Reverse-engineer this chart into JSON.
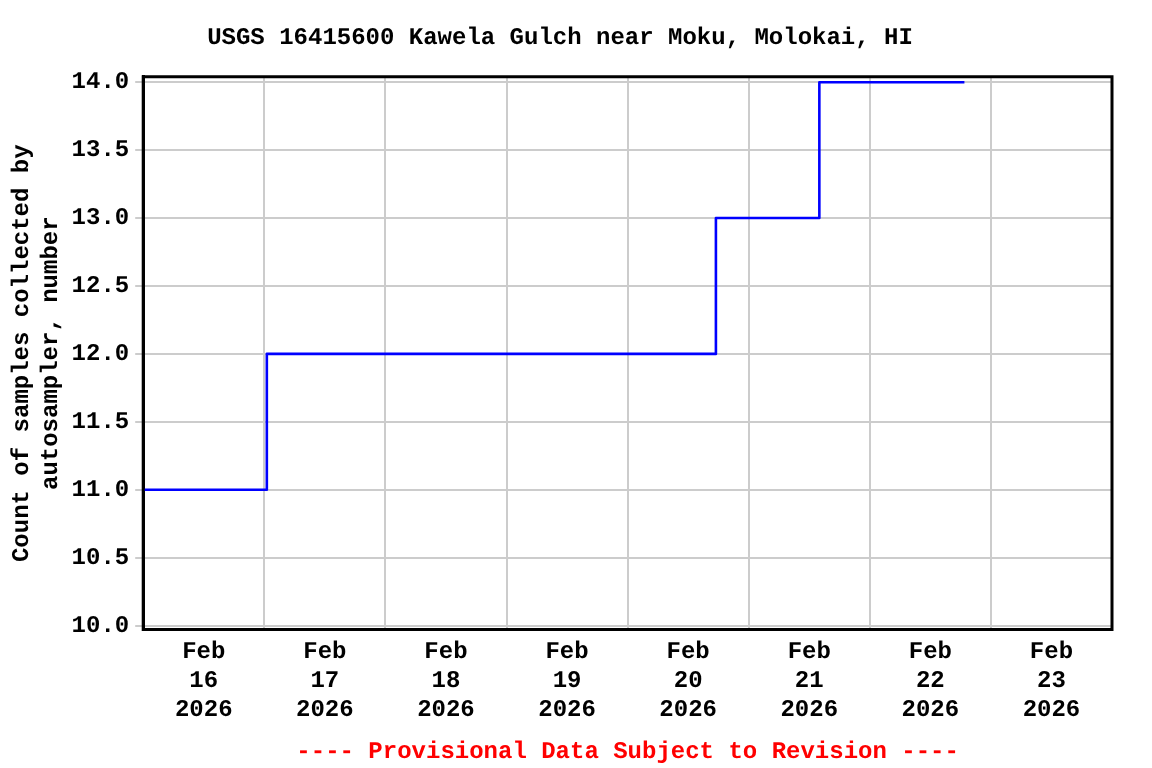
{
  "chart_data": {
    "type": "step",
    "title": "USGS 16415600 Kawela Gulch near Moku, Molokai, HI",
    "ylabel": "Count of samples collected by\nautosampler, number",
    "annotations": [
      "---- Provisional Data Subject to Revision ----"
    ],
    "series": [
      {
        "color": "#0000ff",
        "x": [
          "2026-02-16T00:00",
          "2026-02-17T00:30",
          "2026-02-20T17:30",
          "2026-02-21T14:00",
          "2026-02-22T18:45"
        ],
        "values": [
          11,
          12,
          13,
          14,
          14
        ]
      }
    ],
    "xlim": [
      "2026-02-16T00:00",
      "2026-02-24T00:00"
    ],
    "xticks": [
      {
        "value": "2026-02-16T12:00",
        "label": "Feb\n16\n2026"
      },
      {
        "value": "2026-02-17T00:00",
        "label": null
      },
      {
        "value": "2026-02-17T12:00",
        "label": "Feb\n17\n2026"
      },
      {
        "value": "2026-02-18T00:00",
        "label": null
      },
      {
        "value": "2026-02-18T12:00",
        "label": "Feb\n18\n2026"
      },
      {
        "value": "2026-02-19T00:00",
        "label": null
      },
      {
        "value": "2026-02-19T12:00",
        "label": "Feb\n19\n2026"
      },
      {
        "value": "2026-02-20T00:00",
        "label": null
      },
      {
        "value": "2026-02-20T12:00",
        "label": "Feb\n20\n2026"
      },
      {
        "value": "2026-02-21T00:00",
        "label": null
      },
      {
        "value": "2026-02-21T12:00",
        "label": "Feb\n21\n2026"
      },
      {
        "value": "2026-02-22T00:00",
        "label": null
      },
      {
        "value": "2026-02-22T12:00",
        "label": "Feb\n22\n2026"
      },
      {
        "value": "2026-02-23T00:00",
        "label": null
      },
      {
        "value": "2026-02-23T12:00",
        "label": "Feb\n23\n2026"
      }
    ],
    "ylim": [
      9.97,
      14.04
    ],
    "yticks": [
      {
        "value": 10,
        "label": "10.0"
      },
      {
        "value": 10.5,
        "label": "10.5"
      },
      {
        "value": 11,
        "label": "11.0"
      },
      {
        "value": 11.5,
        "label": "11.5"
      },
      {
        "value": 12,
        "label": "12.0"
      },
      {
        "value": 12.5,
        "label": "12.5"
      },
      {
        "value": 13,
        "label": "13.0"
      },
      {
        "value": 13.5,
        "label": "13.5"
      },
      {
        "value": 14,
        "label": "14.0"
      }
    ],
    "grid": true,
    "legend": false,
    "marker": "none"
  }
}
